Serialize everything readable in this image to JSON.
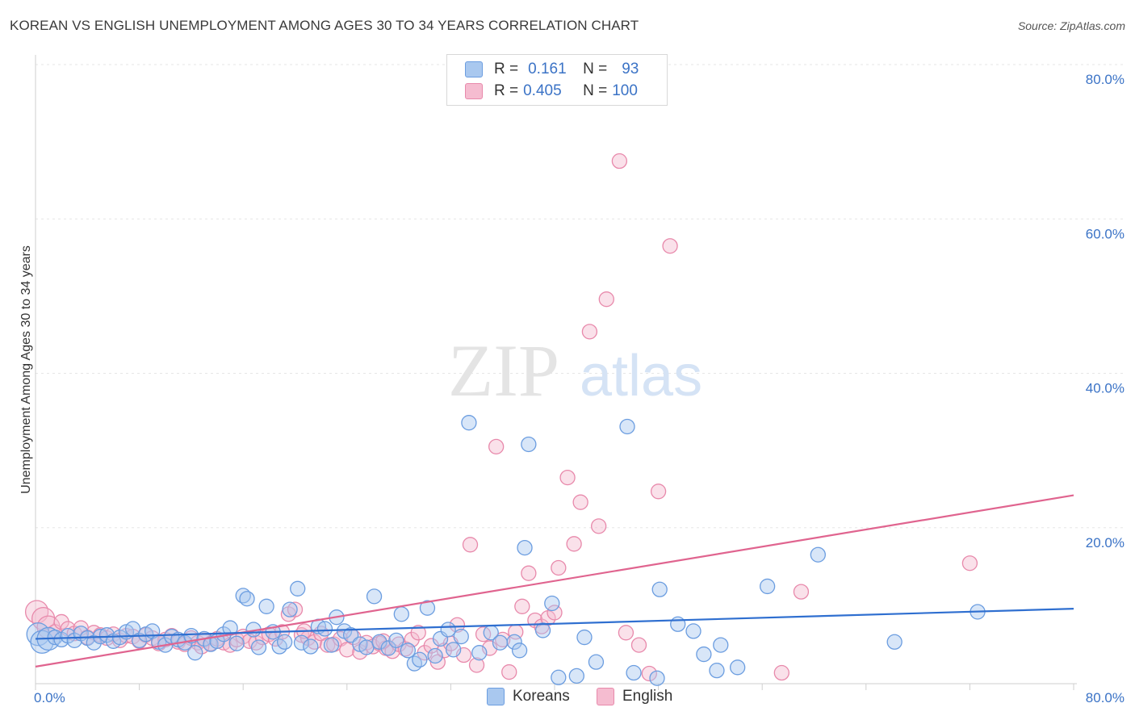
{
  "header": {
    "title": "KOREAN VS ENGLISH UNEMPLOYMENT AMONG AGES 30 TO 34 YEARS CORRELATION CHART",
    "source": "Source: ZipAtlas.com"
  },
  "watermark": {
    "zip": "ZIP",
    "atlas": "atlas"
  },
  "legend": {
    "rows": [
      {
        "r_label": "R =",
        "r_value": "0.161",
        "n_label": "N =",
        "n_value": "93"
      },
      {
        "r_label": "R =",
        "r_value": "0.405",
        "n_label": "N =",
        "n_value": "100"
      }
    ],
    "bottom": [
      "Koreans",
      "English"
    ]
  },
  "colors": {
    "korean_fill": "#a9c8ef",
    "korean_stroke": "#6b9de0",
    "korean_line": "#2f6fd0",
    "english_fill": "#f5bcd0",
    "english_stroke": "#e889ab",
    "english_line": "#e0648f",
    "axis_text": "#3b73c6",
    "grid": "#e6e6e6"
  },
  "chart_data": {
    "type": "scatter",
    "title": "KOREAN VS ENGLISH UNEMPLOYMENT AMONG AGES 30 TO 34 YEARS CORRELATION CHART",
    "xlabel": "",
    "ylabel": "Unemployment Among Ages 30 to 34 years",
    "xlim": [
      0,
      80
    ],
    "ylim": [
      0,
      80
    ],
    "x_tick_labels": [
      "0.0%",
      "80.0%"
    ],
    "y_tick_labels": [
      "20.0%",
      "40.0%",
      "60.0%",
      "80.0%"
    ],
    "y_ticks": [
      20,
      40,
      60,
      80
    ],
    "series": [
      {
        "name": "Koreans",
        "trend": [
          [
            0,
            5.6
          ],
          [
            80,
            9.5
          ]
        ],
        "points": [
          [
            0.2,
            6.2
          ],
          [
            0.5,
            5.2
          ],
          [
            1.0,
            5.6
          ],
          [
            1.5,
            5.8
          ],
          [
            2.0,
            5.5
          ],
          [
            2.5,
            6.0
          ],
          [
            3.0,
            5.4
          ],
          [
            3.5,
            6.3
          ],
          [
            4.0,
            5.7
          ],
          [
            4.5,
            5.1
          ],
          [
            5.0,
            5.9
          ],
          [
            5.5,
            6.1
          ],
          [
            6.0,
            5.3
          ],
          [
            6.5,
            5.8
          ],
          [
            7.0,
            6.5
          ],
          [
            7.5,
            6.9
          ],
          [
            8.0,
            5.4
          ],
          [
            8.5,
            6.2
          ],
          [
            9.0,
            6.6
          ],
          [
            9.5,
            5.2
          ],
          [
            10.0,
            4.8
          ],
          [
            10.5,
            5.9
          ],
          [
            11.0,
            5.5
          ],
          [
            11.5,
            5.1
          ],
          [
            12.0,
            6.0
          ],
          [
            12.3,
            3.8
          ],
          [
            13.0,
            5.6
          ],
          [
            13.5,
            4.9
          ],
          [
            14.0,
            5.3
          ],
          [
            14.5,
            6.2
          ],
          [
            15.0,
            7.0
          ],
          [
            15.5,
            5.0
          ],
          [
            16.0,
            11.2
          ],
          [
            16.3,
            10.8
          ],
          [
            16.8,
            6.8
          ],
          [
            17.2,
            4.5
          ],
          [
            17.8,
            9.8
          ],
          [
            18.3,
            6.5
          ],
          [
            18.8,
            4.6
          ],
          [
            19.2,
            5.2
          ],
          [
            19.6,
            9.4
          ],
          [
            20.2,
            12.1
          ],
          [
            20.5,
            5.1
          ],
          [
            21.2,
            4.6
          ],
          [
            21.8,
            7.2
          ],
          [
            22.3,
            6.9
          ],
          [
            22.8,
            4.8
          ],
          [
            23.2,
            8.4
          ],
          [
            23.8,
            6.6
          ],
          [
            24.3,
            6.1
          ],
          [
            25.0,
            4.9
          ],
          [
            25.5,
            4.5
          ],
          [
            26.1,
            11.1
          ],
          [
            26.5,
            5.2
          ],
          [
            27.2,
            4.4
          ],
          [
            27.8,
            5.4
          ],
          [
            28.2,
            8.8
          ],
          [
            28.7,
            4.1
          ],
          [
            29.2,
            2.4
          ],
          [
            29.6,
            2.9
          ],
          [
            30.2,
            9.6
          ],
          [
            30.8,
            3.4
          ],
          [
            31.2,
            5.6
          ],
          [
            31.8,
            6.8
          ],
          [
            32.2,
            4.2
          ],
          [
            32.8,
            5.9
          ],
          [
            33.4,
            33.6
          ],
          [
            34.2,
            3.8
          ],
          [
            35.1,
            6.4
          ],
          [
            35.8,
            5.1
          ],
          [
            36.9,
            5.2
          ],
          [
            37.3,
            4.1
          ],
          [
            37.7,
            17.4
          ],
          [
            38.0,
            30.8
          ],
          [
            39.1,
            6.7
          ],
          [
            39.8,
            10.2
          ],
          [
            40.3,
            0.6
          ],
          [
            41.7,
            0.8
          ],
          [
            42.3,
            5.8
          ],
          [
            43.2,
            2.6
          ],
          [
            45.6,
            33.1
          ],
          [
            46.1,
            1.2
          ],
          [
            47.9,
            0.5
          ],
          [
            48.1,
            12.0
          ],
          [
            49.5,
            7.5
          ],
          [
            50.7,
            6.6
          ],
          [
            51.5,
            3.6
          ],
          [
            52.5,
            1.5
          ],
          [
            52.8,
            4.8
          ],
          [
            54.1,
            1.9
          ],
          [
            56.4,
            12.4
          ],
          [
            60.3,
            16.5
          ],
          [
            66.2,
            5.2
          ],
          [
            72.6,
            9.1
          ]
        ]
      },
      {
        "name": "English",
        "trend": [
          [
            0,
            2.0
          ],
          [
            80,
            24.2
          ]
        ],
        "points": [
          [
            0.1,
            9.1
          ],
          [
            0.6,
            8.2
          ],
          [
            1.0,
            7.1
          ],
          [
            1.5,
            6.5
          ],
          [
            2.0,
            7.8
          ],
          [
            2.5,
            6.9
          ],
          [
            3.0,
            6.3
          ],
          [
            3.5,
            7.0
          ],
          [
            4.0,
            5.8
          ],
          [
            4.5,
            6.4
          ],
          [
            5.0,
            6.1
          ],
          [
            5.5,
            5.7
          ],
          [
            6.0,
            6.2
          ],
          [
            6.5,
            5.4
          ],
          [
            7.0,
            6.0
          ],
          [
            7.5,
            5.9
          ],
          [
            8.0,
            5.3
          ],
          [
            8.5,
            6.1
          ],
          [
            9.0,
            5.7
          ],
          [
            9.5,
            5.0
          ],
          [
            10.0,
            5.5
          ],
          [
            10.5,
            6.0
          ],
          [
            11.0,
            5.2
          ],
          [
            11.5,
            4.9
          ],
          [
            12.0,
            5.7
          ],
          [
            12.5,
            5.1
          ],
          [
            13.0,
            5.4
          ],
          [
            13.5,
            5.0
          ],
          [
            14.0,
            5.6
          ],
          [
            14.5,
            5.1
          ],
          [
            15.0,
            4.8
          ],
          [
            15.5,
            5.5
          ],
          [
            16.0,
            5.9
          ],
          [
            16.5,
            5.3
          ],
          [
            17.0,
            5.1
          ],
          [
            17.5,
            5.8
          ],
          [
            18.0,
            6.2
          ],
          [
            18.5,
            5.6
          ],
          [
            19.0,
            6.5
          ],
          [
            19.5,
            8.8
          ],
          [
            20.0,
            9.4
          ],
          [
            20.5,
            6.1
          ],
          [
            21.0,
            5.7
          ],
          [
            21.5,
            5.2
          ],
          [
            22.0,
            6.3
          ],
          [
            22.5,
            4.8
          ],
          [
            23.0,
            4.9
          ],
          [
            23.5,
            5.6
          ],
          [
            24.0,
            4.2
          ],
          [
            24.5,
            5.8
          ],
          [
            25.0,
            3.9
          ],
          [
            25.5,
            5.1
          ],
          [
            26.0,
            4.6
          ],
          [
            26.5,
            5.0
          ],
          [
            27.0,
            4.4
          ],
          [
            27.5,
            4.0
          ],
          [
            28.0,
            4.9
          ],
          [
            28.5,
            4.3
          ],
          [
            29.0,
            5.5
          ],
          [
            29.5,
            6.4
          ],
          [
            30.0,
            3.8
          ],
          [
            30.5,
            4.7
          ],
          [
            31.0,
            2.6
          ],
          [
            31.5,
            4.1
          ],
          [
            32.0,
            5.0
          ],
          [
            32.5,
            7.4
          ],
          [
            33.0,
            3.5
          ],
          [
            33.5,
            17.8
          ],
          [
            34.0,
            2.2
          ],
          [
            34.5,
            6.2
          ],
          [
            35.0,
            4.4
          ],
          [
            35.5,
            30.5
          ],
          [
            36.0,
            5.5
          ],
          [
            36.5,
            1.3
          ],
          [
            37.0,
            6.5
          ],
          [
            37.5,
            9.8
          ],
          [
            38.0,
            14.1
          ],
          [
            38.5,
            8.0
          ],
          [
            39.0,
            7.2
          ],
          [
            39.5,
            8.3
          ],
          [
            40.0,
            9.0
          ],
          [
            40.3,
            14.8
          ],
          [
            41.0,
            26.5
          ],
          [
            41.5,
            17.9
          ],
          [
            42.0,
            23.3
          ],
          [
            42.7,
            45.4
          ],
          [
            43.4,
            20.2
          ],
          [
            44.0,
            49.6
          ],
          [
            45.0,
            67.5
          ],
          [
            45.5,
            6.4
          ],
          [
            46.5,
            4.8
          ],
          [
            47.3,
            1.1
          ],
          [
            48.0,
            24.7
          ],
          [
            48.9,
            56.5
          ],
          [
            57.5,
            1.2
          ],
          [
            59.0,
            11.7
          ],
          [
            72.0,
            15.4
          ],
          [
            20.7,
            6.6
          ],
          [
            12.8,
            4.6
          ],
          [
            26.8,
            5.3
          ]
        ]
      }
    ]
  }
}
